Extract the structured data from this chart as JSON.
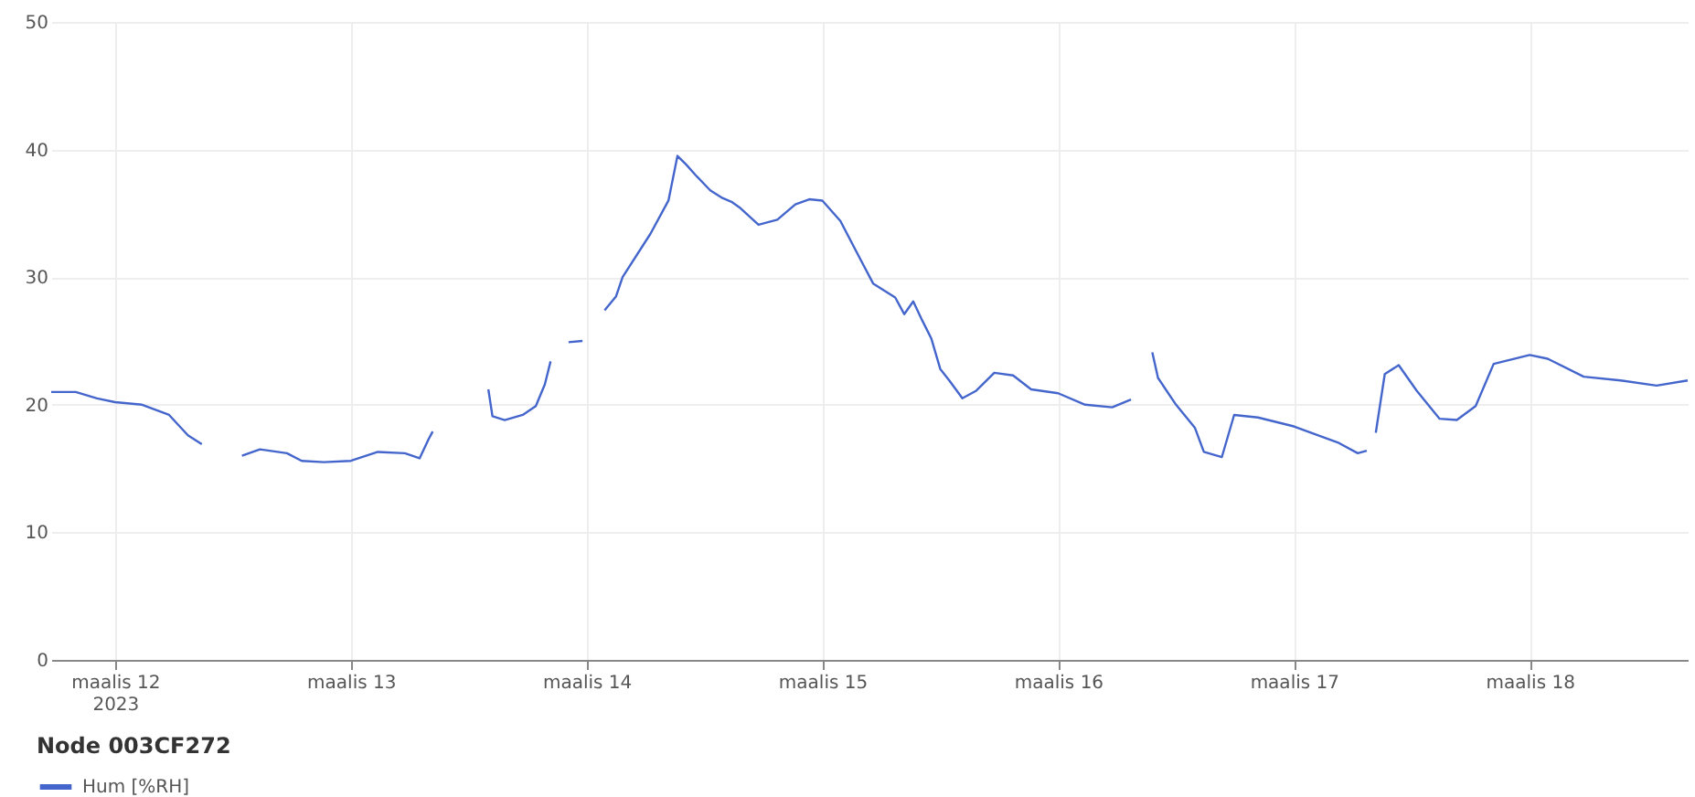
{
  "chart_data": {
    "type": "line",
    "legend_title": "Node 003CF272",
    "legend": "bottom",
    "grid": true,
    "marker": "none",
    "line_style": "solid",
    "x": [
      "2023-03-11T17:30",
      "2023-03-11T20:00",
      "2023-03-11T22:10",
      "2023-03-12T00:00",
      "2023-03-12T02:45",
      "2023-03-12T05:30",
      "2023-03-12T07:25",
      "2023-03-12T08:50",
      "2023-03-12T10:00",
      "2023-03-12T12:55",
      "2023-03-12T14:45",
      "2023-03-12T17:30",
      "2023-03-12T19:00",
      "2023-03-12T21:15",
      "2023-03-13T00:00",
      "2023-03-13T02:45",
      "2023-03-13T05:30",
      "2023-03-13T07:00",
      "2023-03-13T07:55",
      "2023-03-13T08:20",
      "2023-03-13T10:00",
      "2023-03-13T14:00",
      "2023-03-13T14:25",
      "2023-03-13T15:40",
      "2023-03-13T17:30",
      "2023-03-13T18:50",
      "2023-03-13T19:45",
      "2023-03-13T20:20",
      "2023-03-13T21:00",
      "2023-03-13T22:10",
      "2023-03-13T23:35",
      "2023-03-14T01:00",
      "2023-03-14T01:50",
      "2023-03-14T03:00",
      "2023-03-14T03:40",
      "2023-03-14T06:30",
      "2023-03-14T08:20",
      "2023-03-14T09:15",
      "2023-03-14T10:10",
      "2023-03-14T11:05",
      "2023-03-14T12:35",
      "2023-03-14T13:50",
      "2023-03-14T14:45",
      "2023-03-14T15:40",
      "2023-03-14T17:30",
      "2023-03-14T19:25",
      "2023-03-14T21:15",
      "2023-03-14T22:40",
      "2023-03-15T00:00",
      "2023-03-15T01:50",
      "2023-03-15T03:40",
      "2023-03-15T05:10",
      "2023-03-15T07:25",
      "2023-03-15T08:20",
      "2023-03-15T09:15",
      "2023-03-15T10:10",
      "2023-03-15T11:05",
      "2023-03-15T12:00",
      "2023-03-15T12:55",
      "2023-03-15T14:15",
      "2023-03-15T15:40",
      "2023-03-15T17:30",
      "2023-03-15T19:25",
      "2023-03-15T21:15",
      "2023-03-16T00:00",
      "2023-03-16T02:45",
      "2023-03-16T05:30",
      "2023-03-16T07:25",
      "2023-03-16T08:30",
      "2023-03-16T09:35",
      "2023-03-16T10:10",
      "2023-03-16T12:00",
      "2023-03-16T13:55",
      "2023-03-16T14:50",
      "2023-03-16T16:40",
      "2023-03-16T17:55",
      "2023-03-16T20:20",
      "2023-03-17T00:00",
      "2023-03-17T04:35",
      "2023-03-17T06:30",
      "2023-03-17T07:25",
      "2023-03-17T07:50",
      "2023-03-17T08:20",
      "2023-03-17T09:15",
      "2023-03-17T10:40",
      "2023-03-17T12:30",
      "2023-03-17T14:50",
      "2023-03-17T16:35",
      "2023-03-17T18:30",
      "2023-03-17T20:20",
      "2023-03-18T00:00",
      "2023-03-18T01:50",
      "2023-03-18T05:30",
      "2023-03-18T09:15",
      "2023-03-18T12:55",
      "2023-03-18T16:05"
    ],
    "series": [
      {
        "name": "Hum [%RH]",
        "color": "#4466cc",
        "values": [
          21.0,
          21.0,
          20.5,
          20.2,
          20.0,
          19.2,
          17.6,
          16.9,
          null,
          16.0,
          16.5,
          16.2,
          15.6,
          15.5,
          15.6,
          16.3,
          16.2,
          15.8,
          17.3,
          17.9,
          null,
          21.2,
          19.1,
          18.8,
          19.2,
          19.9,
          21.6,
          23.4,
          null,
          24.9,
          25.0,
          null,
          27.4,
          28.5,
          30.0,
          33.4,
          36.0,
          39.5,
          38.8,
          38.0,
          36.8,
          36.2,
          35.9,
          35.4,
          34.1,
          34.5,
          35.7,
          36.1,
          36.0,
          34.4,
          31.7,
          29.5,
          28.4,
          27.1,
          28.1,
          26.6,
          25.2,
          22.8,
          21.9,
          20.5,
          21.1,
          22.5,
          22.3,
          21.2,
          20.9,
          20.0,
          19.8,
          20.4,
          null,
          24.1,
          22.1,
          20.0,
          18.2,
          16.3,
          15.9,
          19.2,
          19.0,
          18.3,
          17.0,
          16.2,
          16.4,
          null,
          17.8,
          22.4,
          23.1,
          21.1,
          18.9,
          18.8,
          19.9,
          23.2,
          23.9,
          23.6,
          22.2,
          21.9,
          21.5,
          21.9
        ]
      }
    ],
    "xlim": [
      "2023-03-11T17:30",
      "2023-03-18T16:05"
    ],
    "xticks": [
      {
        "value": "2023-03-12",
        "label": "maalis 12\n2023"
      },
      {
        "value": "2023-03-13",
        "label": "maalis 13"
      },
      {
        "value": "2023-03-14",
        "label": "maalis 14"
      },
      {
        "value": "2023-03-15",
        "label": "maalis 15"
      },
      {
        "value": "2023-03-16",
        "label": "maalis 16"
      },
      {
        "value": "2023-03-17",
        "label": "maalis 17"
      },
      {
        "value": "2023-03-18",
        "label": "maalis 18"
      }
    ],
    "ylim": [
      0,
      50
    ],
    "yticks": [
      0,
      10,
      20,
      30,
      40,
      50
    ]
  }
}
